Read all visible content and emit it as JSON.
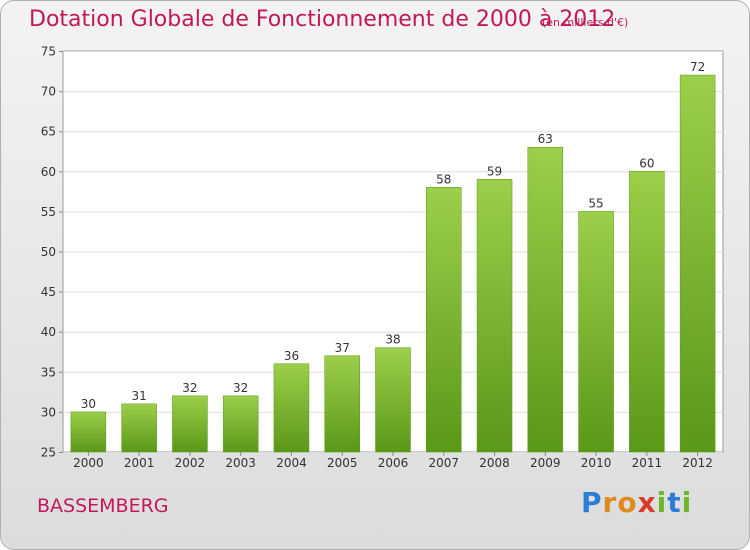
{
  "header": {
    "title": "Dotation Globale de Fonctionnement de 2000 à 2012",
    "unit": "(en milliers d'€)"
  },
  "footer": {
    "commune": "BASSEMBERG",
    "logo": "Proxiti"
  },
  "colors": {
    "accent": "#c2185b",
    "bar_top": "#9ccf4a",
    "bar_bottom": "#5a9818"
  },
  "chart_data": {
    "type": "bar",
    "categories": [
      "2000",
      "2001",
      "2002",
      "2003",
      "2004",
      "2005",
      "2006",
      "2007",
      "2008",
      "2009",
      "2010",
      "2011",
      "2012"
    ],
    "values": [
      30,
      31,
      32,
      32,
      36,
      37,
      38,
      58,
      59,
      63,
      55,
      60,
      72
    ],
    "ylim": [
      25,
      75
    ],
    "yticks": [
      25,
      30,
      35,
      40,
      45,
      50,
      55,
      60,
      65,
      70,
      75
    ],
    "grid": true,
    "data_labels": true
  }
}
